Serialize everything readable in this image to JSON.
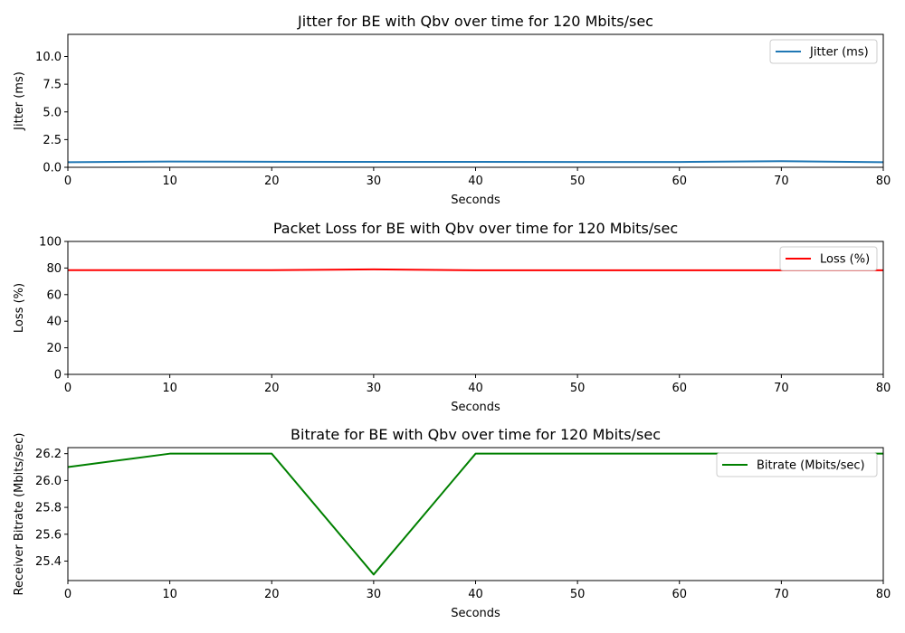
{
  "chart_data": [
    {
      "type": "line",
      "title": "Jitter for BE with Qbv over time for 120 Mbits/sec",
      "xlabel": "Seconds",
      "ylabel": "Jitter (ms)",
      "xlim": [
        0,
        80
      ],
      "ylim": [
        0,
        12
      ],
      "xticks": [
        "0",
        "10",
        "20",
        "30",
        "40",
        "50",
        "60",
        "70",
        "80"
      ],
      "yticks": [
        "0.0",
        "2.5",
        "5.0",
        "7.5",
        "10.0"
      ],
      "grid": false,
      "legend_position": "upper right",
      "series": [
        {
          "name": "Jitter (ms)",
          "color": "#1f77b4",
          "x": [
            0,
            10,
            20,
            30,
            40,
            50,
            60,
            70,
            80
          ],
          "y": [
            0.46,
            0.52,
            0.5,
            0.49,
            0.49,
            0.48,
            0.48,
            0.55,
            0.46
          ]
        }
      ]
    },
    {
      "type": "line",
      "title": "Packet Loss for BE with Qbv over time for 120 Mbits/sec",
      "xlabel": "Seconds",
      "ylabel": "Loss (%)",
      "xlim": [
        0,
        80
      ],
      "ylim": [
        0,
        100
      ],
      "xticks": [
        "0",
        "10",
        "20",
        "30",
        "40",
        "50",
        "60",
        "70",
        "80"
      ],
      "yticks": [
        "0",
        "20",
        "40",
        "60",
        "80",
        "100"
      ],
      "grid": false,
      "legend_position": "upper right",
      "series": [
        {
          "name": "Loss (%)",
          "color": "#ff0000",
          "x": [
            0,
            10,
            20,
            30,
            40,
            50,
            60,
            70,
            80
          ],
          "y": [
            78.4,
            78.4,
            78.4,
            79.0,
            78.3,
            78.3,
            78.3,
            78.3,
            78.3
          ]
        }
      ]
    },
    {
      "type": "line",
      "title": "Bitrate for BE with Qbv over time for 120 Mbits/sec",
      "xlabel": "Seconds",
      "ylabel": "Receiver Bitrate (Mbits/sec)",
      "xlim": [
        0,
        80
      ],
      "ylim": [
        25.255,
        26.245
      ],
      "xticks": [
        "0",
        "10",
        "20",
        "30",
        "40",
        "50",
        "60",
        "70",
        "80"
      ],
      "yticks": [
        "25.4",
        "25.6",
        "25.8",
        "26.0",
        "26.2"
      ],
      "grid": false,
      "legend_position": "upper right",
      "series": [
        {
          "name": "Bitrate (Mbits/sec)",
          "color": "#008000",
          "x": [
            0,
            10,
            20,
            30,
            40,
            50,
            60,
            70,
            80
          ],
          "y": [
            26.1,
            26.2,
            26.2,
            25.3,
            26.2,
            26.2,
            26.2,
            26.2,
            26.2
          ]
        }
      ]
    }
  ]
}
